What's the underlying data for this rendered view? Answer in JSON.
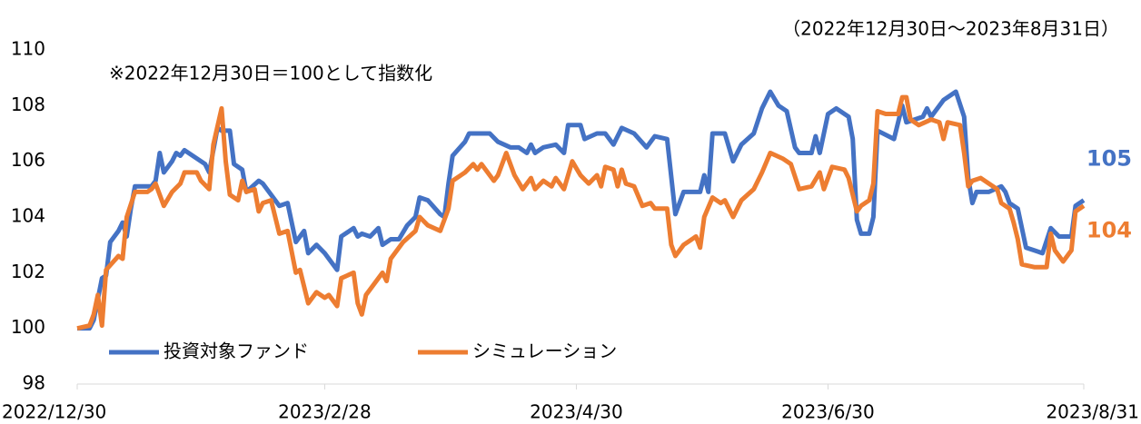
{
  "chart_data": {
    "type": "line",
    "subtitle": "（2022年12月30日～2023年8月31日）",
    "annotation": "※2022年12月30日＝100として指数化",
    "xlim": [
      "2022/12/30",
      "2023/8/31"
    ],
    "xticks": [
      "2022/12/30",
      "2023/2/28",
      "2023/4/30",
      "2023/6/30",
      "2023/8/31"
    ],
    "ylim": [
      98,
      110
    ],
    "yticks": [
      98,
      100,
      102,
      104,
      106,
      108,
      110
    ],
    "grid": false,
    "legend": "lower left",
    "series": [
      {
        "name": "投資対象ファンド",
        "color": "#4472c4",
        "end_label": 105,
        "x": [
          "2022/12/30",
          "2023/1/2",
          "2023/1/3",
          "2023/1/5",
          "2023/1/6",
          "2023/1/7",
          "2023/1/9",
          "2023/1/10",
          "2023/1/11",
          "2023/1/12",
          "2023/1/13",
          "2023/1/16",
          "2023/1/17",
          "2023/1/18",
          "2023/1/19",
          "2023/1/20",
          "2023/1/22",
          "2023/1/23",
          "2023/1/24",
          "2023/1/25",
          "2023/1/30",
          "2023/1/31",
          "2023/2/2",
          "2023/2/3",
          "2023/2/5",
          "2023/2/6",
          "2023/2/8",
          "2023/2/9",
          "2023/2/12",
          "2023/2/13",
          "2023/2/15",
          "2023/2/17",
          "2023/2/19",
          "2023/2/21",
          "2023/2/23",
          "2023/2/24",
          "2023/2/26",
          "2023/2/28",
          "2023/3/3",
          "2023/3/4",
          "2023/3/7",
          "2023/3/8",
          "2023/3/9",
          "2023/3/11",
          "2023/3/13",
          "2023/3/14",
          "2023/3/16",
          "2023/3/18",
          "2023/3/20",
          "2023/3/22",
          "2023/3/23",
          "2023/3/25",
          "2023/3/28",
          "2023/3/29",
          "2023/3/30",
          "2023/3/31",
          "2023/4/3",
          "2023/4/4",
          "2023/4/6",
          "2023/4/9",
          "2023/4/11",
          "2023/4/14",
          "2023/4/16",
          "2023/4/18",
          "2023/4/19",
          "2023/4/20",
          "2023/4/22",
          "2023/4/25",
          "2023/4/27",
          "2023/4/28",
          "2023/5/1",
          "2023/5/2",
          "2023/5/5",
          "2023/5/7",
          "2023/5/9",
          "2023/5/11",
          "2023/5/14",
          "2023/5/17",
          "2023/5/19",
          "2023/5/22",
          "2023/5/24",
          "2023/5/26",
          "2023/5/30",
          "2023/5/31",
          "2023/6/1",
          "2023/6/2",
          "2023/6/5",
          "2023/6/7",
          "2023/6/9",
          "2023/6/12",
          "2023/6/14",
          "2023/6/16",
          "2023/6/18",
          "2023/6/20",
          "2023/6/22",
          "2023/6/23",
          "2023/6/26",
          "2023/6/27",
          "2023/6/28",
          "2023/6/30",
          "2023/7/2",
          "2023/7/5",
          "2023/7/6",
          "2023/7/7",
          "2023/7/8",
          "2023/7/10",
          "2023/7/11",
          "2023/7/12",
          "2023/7/16",
          "2023/7/18",
          "2023/7/19",
          "2023/7/23",
          "2023/7/24",
          "2023/7/25",
          "2023/7/28",
          "2023/7/31",
          "2023/8/2",
          "2023/8/3",
          "2023/8/4",
          "2023/8/5",
          "2023/8/8",
          "2023/8/11",
          "2023/8/12",
          "2023/8/13",
          "2023/8/15",
          "2023/8/17",
          "2023/8/19",
          "2023/8/21",
          "2023/8/23",
          "2023/8/25",
          "2023/8/28",
          "2023/8/29",
          "2023/8/31"
        ],
        "values": [
          100,
          100,
          100.3,
          101.8,
          101.9,
          103.1,
          103.5,
          103.8,
          103.3,
          104.3,
          105.1,
          105.1,
          105.1,
          105.3,
          106.3,
          105.6,
          106.0,
          106.3,
          106.2,
          106.4,
          105.9,
          105.6,
          107.2,
          107.1,
          107.1,
          105.9,
          105.7,
          104.9,
          105.3,
          105.2,
          104.8,
          104.4,
          104.5,
          103.1,
          103.5,
          102.7,
          103.0,
          102.7,
          102.1,
          103.3,
          103.6,
          103.3,
          103.4,
          103.3,
          103.6,
          103.0,
          103.2,
          103.2,
          103.7,
          104.0,
          104.7,
          104.6,
          104.1,
          104.0,
          105.2,
          106.2,
          106.7,
          107.0,
          107.0,
          107.0,
          106.7,
          106.5,
          106.5,
          106.3,
          106.6,
          106.3,
          106.5,
          106.6,
          106.3,
          107.3,
          107.3,
          106.8,
          107.0,
          107.0,
          106.6,
          107.2,
          107.0,
          106.5,
          106.9,
          106.8,
          104.1,
          104.9,
          104.9,
          105.5,
          104.9,
          107.0,
          107.0,
          106.0,
          106.6,
          107.0,
          107.9,
          108.5,
          108.0,
          107.8,
          106.5,
          106.3,
          106.3,
          106.9,
          106.3,
          107.7,
          107.9,
          107.6,
          106.8,
          103.9,
          103.4,
          103.4,
          104.0,
          107.1,
          106.8,
          108.0,
          107.4,
          107.6,
          107.9,
          107.6,
          108.2,
          108.5,
          107.6,
          105.4,
          104.5,
          104.9,
          104.9,
          105.1,
          104.9,
          104.5,
          104.3,
          102.9,
          102.8,
          102.7,
          103.6,
          103.3,
          103.3,
          104.4,
          104.6
        ]
      },
      {
        "name": "シミュレーション",
        "color": "#ed7d31",
        "end_label": 104,
        "x": [
          "2022/12/30",
          "2023/1/2",
          "2023/1/3",
          "2023/1/4",
          "2023/1/5",
          "2023/1/6",
          "2023/1/9",
          "2023/1/10",
          "2023/1/11",
          "2023/1/13",
          "2023/1/16",
          "2023/1/17",
          "2023/1/18",
          "2023/1/20",
          "2023/1/22",
          "2023/1/24",
          "2023/1/25",
          "2023/1/28",
          "2023/1/29",
          "2023/1/31",
          "2023/2/1",
          "2023/2/3",
          "2023/2/4",
          "2023/2/5",
          "2023/2/7",
          "2023/2/8",
          "2023/2/9",
          "2023/2/11",
          "2023/2/12",
          "2023/2/13",
          "2023/2/15",
          "2023/2/17",
          "2023/2/19",
          "2023/2/21",
          "2023/2/22",
          "2023/2/24",
          "2023/2/26",
          "2023/2/28",
          "2023/3/1",
          "2023/3/3",
          "2023/3/4",
          "2023/3/7",
          "2023/3/8",
          "2023/3/9",
          "2023/3/10",
          "2023/3/14",
          "2023/3/15",
          "2023/3/16",
          "2023/3/19",
          "2023/3/22",
          "2023/3/23",
          "2023/3/25",
          "2023/3/28",
          "2023/3/30",
          "2023/3/31",
          "2023/4/3",
          "2023/4/5",
          "2023/4/6",
          "2023/4/7",
          "2023/4/10",
          "2023/4/11",
          "2023/4/13",
          "2023/4/15",
          "2023/4/17",
          "2023/4/19",
          "2023/4/20",
          "2023/4/22",
          "2023/4/24",
          "2023/4/25",
          "2023/4/27",
          "2023/4/29",
          "2023/5/1",
          "2023/5/3",
          "2023/5/5",
          "2023/5/6",
          "2023/5/7",
          "2023/5/9",
          "2023/5/10",
          "2023/5/11",
          "2023/5/12",
          "2023/5/14",
          "2023/5/16",
          "2023/5/18",
          "2023/5/19",
          "2023/5/22",
          "2023/5/23",
          "2023/5/24",
          "2023/5/26",
          "2023/5/29",
          "2023/5/30",
          "2023/5/31",
          "2023/6/2",
          "2023/6/4",
          "2023/6/5",
          "2023/6/7",
          "2023/6/9",
          "2023/6/12",
          "2023/6/14",
          "2023/6/16",
          "2023/6/19",
          "2023/6/21",
          "2023/6/23",
          "2023/6/26",
          "2023/6/28",
          "2023/6/29",
          "2023/7/1",
          "2023/7/4",
          "2023/7/5",
          "2023/7/7",
          "2023/7/8",
          "2023/7/10",
          "2023/7/11",
          "2023/7/12",
          "2023/7/14",
          "2023/7/17",
          "2023/7/18",
          "2023/7/19",
          "2023/7/20",
          "2023/7/22",
          "2023/7/25",
          "2023/7/27",
          "2023/7/28",
          "2023/7/29",
          "2023/8/1",
          "2023/8/2",
          "2023/8/3",
          "2023/8/4",
          "2023/8/6",
          "2023/8/8",
          "2023/8/10",
          "2023/8/11",
          "2023/8/13",
          "2023/8/14",
          "2023/8/15",
          "2023/8/16",
          "2023/8/19",
          "2023/8/21",
          "2023/8/22",
          "2023/8/23",
          "2023/8/24",
          "2023/8/26",
          "2023/8/28",
          "2023/8/29",
          "2023/8/31"
        ],
        "values": [
          100,
          100.1,
          100.5,
          101.2,
          100.1,
          102.1,
          102.6,
          102.5,
          104.0,
          104.9,
          104.9,
          105.0,
          105.2,
          104.4,
          104.9,
          105.2,
          105.6,
          105.6,
          105.3,
          105.0,
          106.6,
          107.9,
          106.0,
          104.8,
          104.6,
          105.3,
          104.9,
          105.0,
          104.2,
          104.5,
          104.6,
          103.4,
          103.5,
          102.0,
          102.1,
          100.9,
          101.3,
          101.1,
          101.2,
          100.8,
          101.8,
          102.0,
          100.9,
          100.5,
          101.2,
          102.0,
          101.7,
          102.5,
          103.1,
          103.5,
          104.0,
          103.7,
          103.5,
          104.3,
          105.3,
          105.6,
          105.9,
          105.7,
          105.9,
          105.3,
          105.5,
          106.3,
          105.5,
          105.0,
          105.4,
          105.0,
          105.3,
          105.1,
          105.4,
          105.0,
          106.0,
          105.5,
          105.2,
          105.5,
          105.1,
          105.8,
          105.7,
          105.1,
          105.7,
          105.2,
          105.1,
          104.4,
          104.5,
          104.3,
          104.3,
          103.0,
          102.6,
          103.0,
          103.3,
          102.9,
          104.0,
          104.7,
          104.5,
          104.6,
          104.0,
          104.6,
          105.0,
          105.6,
          106.3,
          106.1,
          105.9,
          105.0,
          105.1,
          105.6,
          105.0,
          105.8,
          105.7,
          105.4,
          104.2,
          104.4,
          104.6,
          105.2,
          107.8,
          107.7,
          107.7,
          108.3,
          108.3,
          107.5,
          107.3,
          107.5,
          107.4,
          106.8,
          107.4,
          107.3,
          106.3,
          105.1,
          105.3,
          105.4,
          105.2,
          105.0,
          104.5,
          104.3,
          103.8,
          103.2,
          102.3,
          102.2,
          102.2,
          102.2,
          103.4,
          102.8,
          102.4,
          102.8,
          104.2,
          104.4
        ]
      }
    ]
  }
}
